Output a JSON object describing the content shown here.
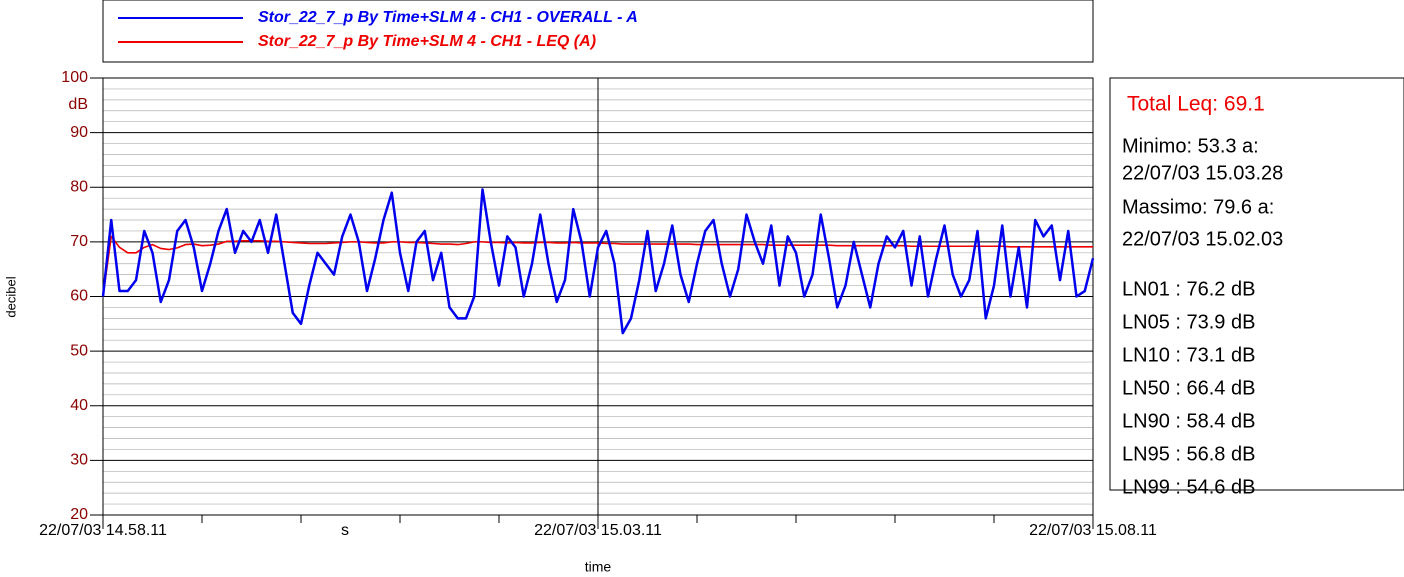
{
  "chart_data": {
    "type": "line",
    "xlabel": "time",
    "ylabel": "decibel",
    "x_unit": "s",
    "y_unit": "dB",
    "x": [
      0,
      5,
      10,
      15,
      20,
      25,
      30,
      35,
      40,
      45,
      50,
      55,
      60,
      65,
      70,
      75,
      80,
      85,
      90,
      95,
      100,
      105,
      110,
      115,
      120,
      125,
      130,
      135,
      140,
      145,
      150,
      155,
      160,
      165,
      170,
      175,
      180,
      185,
      190,
      195,
      200,
      205,
      210,
      215,
      220,
      225,
      230,
      235,
      240,
      245,
      250,
      255,
      260,
      265,
      270,
      275,
      280,
      285,
      290,
      295,
      300,
      305,
      310,
      315,
      320,
      325,
      330,
      335,
      340,
      345,
      350,
      355,
      360,
      365,
      370,
      375,
      380,
      385,
      390,
      395,
      400,
      405,
      410,
      415,
      420,
      425,
      430,
      435,
      440,
      445,
      450,
      455,
      460,
      465,
      470,
      475,
      480,
      485,
      490,
      495,
      500,
      505,
      510,
      515,
      520,
      525,
      530,
      535,
      540,
      545,
      550,
      555,
      560,
      565,
      570,
      575,
      580,
      585,
      590,
      595,
      600
    ],
    "series": [
      {
        "name": "Stor_22_7_p By Time+SLM 4 - CH1 - OVERALL - A",
        "color": "#0000ee",
        "values": [
          60,
          74,
          61,
          61,
          63,
          72,
          68,
          59,
          63,
          72,
          74,
          69,
          61,
          66,
          72,
          76,
          68,
          72,
          70,
          74,
          68,
          75,
          66,
          57,
          55,
          62,
          68,
          66,
          64,
          71,
          75,
          70,
          61,
          67,
          74,
          79,
          68,
          61,
          70,
          72,
          63,
          68,
          58,
          56,
          56,
          60,
          79.6,
          70,
          62,
          71,
          69,
          60,
          66,
          75,
          66,
          59,
          63,
          76,
          70,
          60,
          69,
          72,
          66,
          53.3,
          56,
          63,
          72,
          61,
          66,
          73,
          64,
          59,
          66,
          72,
          74,
          66,
          60,
          65,
          75,
          70,
          66,
          73,
          62,
          71,
          68,
          60,
          64,
          75,
          67,
          58,
          62,
          70,
          64,
          58,
          66,
          71,
          69,
          72,
          62,
          71,
          60,
          67,
          73,
          64,
          60,
          63,
          72,
          56,
          62,
          73,
          60,
          69,
          58,
          74,
          71,
          73,
          63,
          72,
          60,
          61,
          67
        ]
      },
      {
        "name": "Stor_22_7_p By Time+SLM 4 - CH1 - LEQ (A)",
        "color": "#ee0000",
        "values": [
          60,
          71,
          69,
          68,
          68,
          69,
          69.5,
          68.8,
          68.6,
          68.9,
          69.5,
          69.6,
          69.3,
          69.4,
          69.6,
          70.1,
          70.1,
          70.2,
          70.2,
          70.2,
          70.1,
          70.1,
          70.0,
          69.9,
          69.8,
          69.7,
          69.7,
          69.7,
          69.8,
          69.9,
          70.0,
          70.0,
          69.9,
          69.8,
          69.8,
          70.0,
          70.0,
          69.9,
          69.9,
          69.8,
          69.7,
          69.6,
          69.6,
          69.5,
          69.7,
          70.0,
          70.0,
          69.9,
          69.9,
          69.8,
          69.9,
          69.8,
          69.8,
          69.9,
          69.9,
          69.8,
          69.8,
          69.9,
          69.8,
          69.8,
          69.8,
          69.7,
          69.7,
          69.6,
          69.6,
          69.6,
          69.6,
          69.6,
          69.6,
          69.6,
          69.6,
          69.6,
          69.5,
          69.5,
          69.5,
          69.5,
          69.5,
          69.5,
          69.5,
          69.5,
          69.5,
          69.4,
          69.4,
          69.4,
          69.4,
          69.4,
          69.4,
          69.4,
          69.4,
          69.3,
          69.3,
          69.3,
          69.3,
          69.3,
          69.3,
          69.3,
          69.3,
          69.3,
          69.2,
          69.2,
          69.2,
          69.2,
          69.2,
          69.2,
          69.2,
          69.2,
          69.2,
          69.2,
          69.2,
          69.2,
          69.1,
          69.1,
          69.1,
          69.1,
          69.1,
          69.1,
          69.1,
          69.1,
          69.1,
          69.1,
          69.1
        ]
      }
    ],
    "xlim": [
      0,
      600
    ],
    "xticks": [
      {
        "value": 0,
        "label": "22/07/03 14.58.11"
      },
      {
        "value": 300,
        "label": "22/07/03 15.03.11"
      },
      {
        "value": 600,
        "label": "22/07/03 15.08.11"
      }
    ],
    "xminorticks": [
      60,
      120,
      180,
      240,
      360,
      420,
      480,
      540
    ],
    "ylim": [
      20,
      100
    ],
    "yticks": [
      20,
      30,
      40,
      50,
      60,
      70,
      80,
      90,
      100
    ],
    "yminorticks": [
      22,
      24,
      26,
      28,
      32,
      34,
      36,
      38,
      42,
      44,
      46,
      48,
      52,
      54,
      56,
      58,
      62,
      64,
      66,
      68,
      72,
      74,
      76,
      78,
      82,
      84,
      86,
      88,
      92,
      94,
      96,
      98
    ],
    "grid": true,
    "panel": {
      "total": "Total Leq: 69.1",
      "lines": [
        "Minimo: 53.3 a:",
        "22/07/03 15.03.28",
        "Massimo: 79.6 a:",
        "22/07/03 15.02.03"
      ],
      "ln": [
        "LN01 : 76.2 dB",
        "LN05 : 73.9 dB",
        "LN10 : 73.1 dB",
        "LN50 : 66.4 dB",
        "LN90 : 58.4 dB",
        "LN95 : 56.8 dB",
        "LN99 : 54.6 dB"
      ]
    }
  }
}
